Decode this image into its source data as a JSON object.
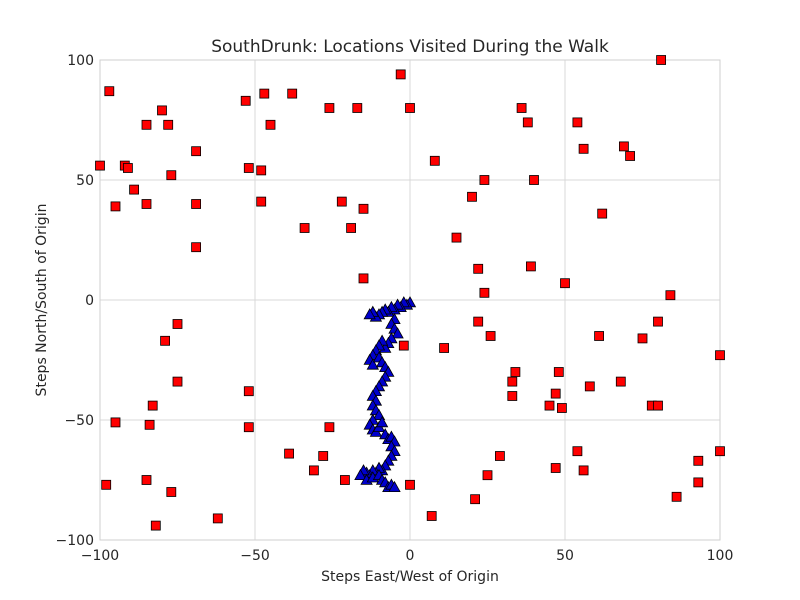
{
  "chart_data": {
    "type": "scatter",
    "title": "SouthDrunk: Locations Visited During the Walk",
    "xlabel": "Steps East/West of Origin",
    "ylabel": "Steps North/South of Origin",
    "xlim": [
      -100,
      100
    ],
    "ylim": [
      -100,
      100
    ],
    "xticks": [
      -100,
      -50,
      0,
      50,
      100
    ],
    "yticks": [
      -100,
      -50,
      0,
      50,
      100
    ],
    "xtick_labels": [
      "−100",
      "−50",
      "0",
      "50",
      "100"
    ],
    "ytick_labels": [
      "−100",
      "−50",
      "0",
      "50",
      "100"
    ],
    "grid": true,
    "colors": {
      "squares": "#ff0000",
      "triangles": "#0000cc",
      "grid": "#d9d9d9",
      "frame": "#cfcfcf"
    },
    "series": [
      {
        "marker": "square",
        "color": "#ff0000",
        "points": [
          [
            -100,
            56
          ],
          [
            -97,
            87
          ],
          [
            -95,
            39
          ],
          [
            -92,
            56
          ],
          [
            -91,
            55
          ],
          [
            -89,
            46
          ],
          [
            -85,
            73
          ],
          [
            -85,
            40
          ],
          [
            -80,
            79
          ],
          [
            -78,
            73
          ],
          [
            -77,
            52
          ],
          [
            -69,
            62
          ],
          [
            -69,
            40
          ],
          [
            -69,
            22
          ],
          [
            -53,
            83
          ],
          [
            -52,
            55
          ],
          [
            -48,
            54
          ],
          [
            -48,
            41
          ],
          [
            -47,
            86
          ],
          [
            -45,
            73
          ],
          [
            -38,
            86
          ],
          [
            -34,
            30
          ],
          [
            -26,
            80
          ],
          [
            -22,
            41
          ],
          [
            -19,
            30
          ],
          [
            -17,
            80
          ],
          [
            -15,
            38
          ],
          [
            -15,
            9
          ],
          [
            -3,
            94
          ],
          [
            0,
            80
          ],
          [
            8,
            58
          ],
          [
            20,
            43
          ],
          [
            22,
            13
          ],
          [
            24,
            50
          ],
          [
            24,
            3
          ],
          [
            15,
            26
          ],
          [
            36,
            80
          ],
          [
            38,
            74
          ],
          [
            39,
            14
          ],
          [
            40,
            50
          ],
          [
            50,
            7
          ],
          [
            54,
            74
          ],
          [
            56,
            63
          ],
          [
            62,
            36
          ],
          [
            69,
            64
          ],
          [
            71,
            60
          ],
          [
            81,
            100
          ],
          [
            84,
            2
          ],
          [
            -75,
            -10
          ],
          [
            -79,
            -17
          ],
          [
            -75,
            -34
          ],
          [
            -83,
            -44
          ],
          [
            -95,
            -51
          ],
          [
            -84,
            -52
          ],
          [
            -98,
            -77
          ],
          [
            -85,
            -75
          ],
          [
            -77,
            -80
          ],
          [
            -82,
            -94
          ],
          [
            -62,
            -91
          ],
          [
            -52,
            -38
          ],
          [
            -52,
            -53
          ],
          [
            -39,
            -64
          ],
          [
            -31,
            -71
          ],
          [
            -28,
            -65
          ],
          [
            -26,
            -53
          ],
          [
            -21,
            -75
          ],
          [
            -2,
            -19
          ],
          [
            0,
            -77
          ],
          [
            7,
            -90
          ],
          [
            11,
            -20
          ],
          [
            22,
            -9
          ],
          [
            26,
            -15
          ],
          [
            34,
            -30
          ],
          [
            33,
            -34
          ],
          [
            33,
            -40
          ],
          [
            25,
            -73
          ],
          [
            29,
            -65
          ],
          [
            21,
            -83
          ],
          [
            45,
            -44
          ],
          [
            47,
            -39
          ],
          [
            48,
            -30
          ],
          [
            49,
            -45
          ],
          [
            47,
            -70
          ],
          [
            54,
            -63
          ],
          [
            56,
            -71
          ],
          [
            58,
            -36
          ],
          [
            61,
            -15
          ],
          [
            68,
            -34
          ],
          [
            75,
            -16
          ],
          [
            78,
            -44
          ],
          [
            80,
            -44
          ],
          [
            80,
            -9
          ],
          [
            86,
            -82
          ],
          [
            93,
            -67
          ],
          [
            93,
            -76
          ],
          [
            100,
            -23
          ],
          [
            100,
            -63
          ]
        ]
      },
      {
        "marker": "triangle",
        "color": "#0000cc",
        "points": [
          [
            0,
            -1
          ],
          [
            -1,
            -2
          ],
          [
            -2,
            -1
          ],
          [
            -3,
            -3
          ],
          [
            -4,
            -2
          ],
          [
            -5,
            -4
          ],
          [
            -6,
            -3
          ],
          [
            -7,
            -5
          ],
          [
            -8,
            -4
          ],
          [
            -9,
            -5
          ],
          [
            -10,
            -6
          ],
          [
            -11,
            -7
          ],
          [
            -12,
            -5
          ],
          [
            -13,
            -6
          ],
          [
            -5,
            -8
          ],
          [
            -6,
            -10
          ],
          [
            -5,
            -12
          ],
          [
            -4,
            -14
          ],
          [
            -6,
            -16
          ],
          [
            -7,
            -18
          ],
          [
            -8,
            -20
          ],
          [
            -9,
            -17
          ],
          [
            -10,
            -19
          ],
          [
            -11,
            -21
          ],
          [
            -12,
            -23
          ],
          [
            -13,
            -25
          ],
          [
            -12,
            -27
          ],
          [
            -10,
            -24
          ],
          [
            -9,
            -26
          ],
          [
            -8,
            -28
          ],
          [
            -7,
            -30
          ],
          [
            -8,
            -32
          ],
          [
            -9,
            -34
          ],
          [
            -10,
            -36
          ],
          [
            -11,
            -38
          ],
          [
            -12,
            -40
          ],
          [
            -11,
            -42
          ],
          [
            -12,
            -44
          ],
          [
            -11,
            -46
          ],
          [
            -10,
            -48
          ],
          [
            -12,
            -50
          ],
          [
            -13,
            -52
          ],
          [
            -12,
            -54
          ],
          [
            -11,
            -55
          ],
          [
            -10,
            -53
          ],
          [
            -9,
            -51
          ],
          [
            -8,
            -56
          ],
          [
            -7,
            -58
          ],
          [
            -6,
            -57
          ],
          [
            -5,
            -59
          ],
          [
            -6,
            -61
          ],
          [
            -5,
            -63
          ],
          [
            -6,
            -65
          ],
          [
            -7,
            -67
          ],
          [
            -8,
            -69
          ],
          [
            -9,
            -71
          ],
          [
            -10,
            -70
          ],
          [
            -11,
            -72
          ],
          [
            -12,
            -71
          ],
          [
            -13,
            -73
          ],
          [
            -14,
            -72
          ],
          [
            -15,
            -71
          ],
          [
            -16,
            -73
          ],
          [
            -14,
            -75
          ],
          [
            -12,
            -74
          ],
          [
            -10,
            -73
          ],
          [
            -9,
            -75
          ],
          [
            -8,
            -76
          ],
          [
            -7,
            -78
          ],
          [
            -6,
            -77
          ],
          [
            -5,
            -78
          ]
        ]
      }
    ]
  }
}
